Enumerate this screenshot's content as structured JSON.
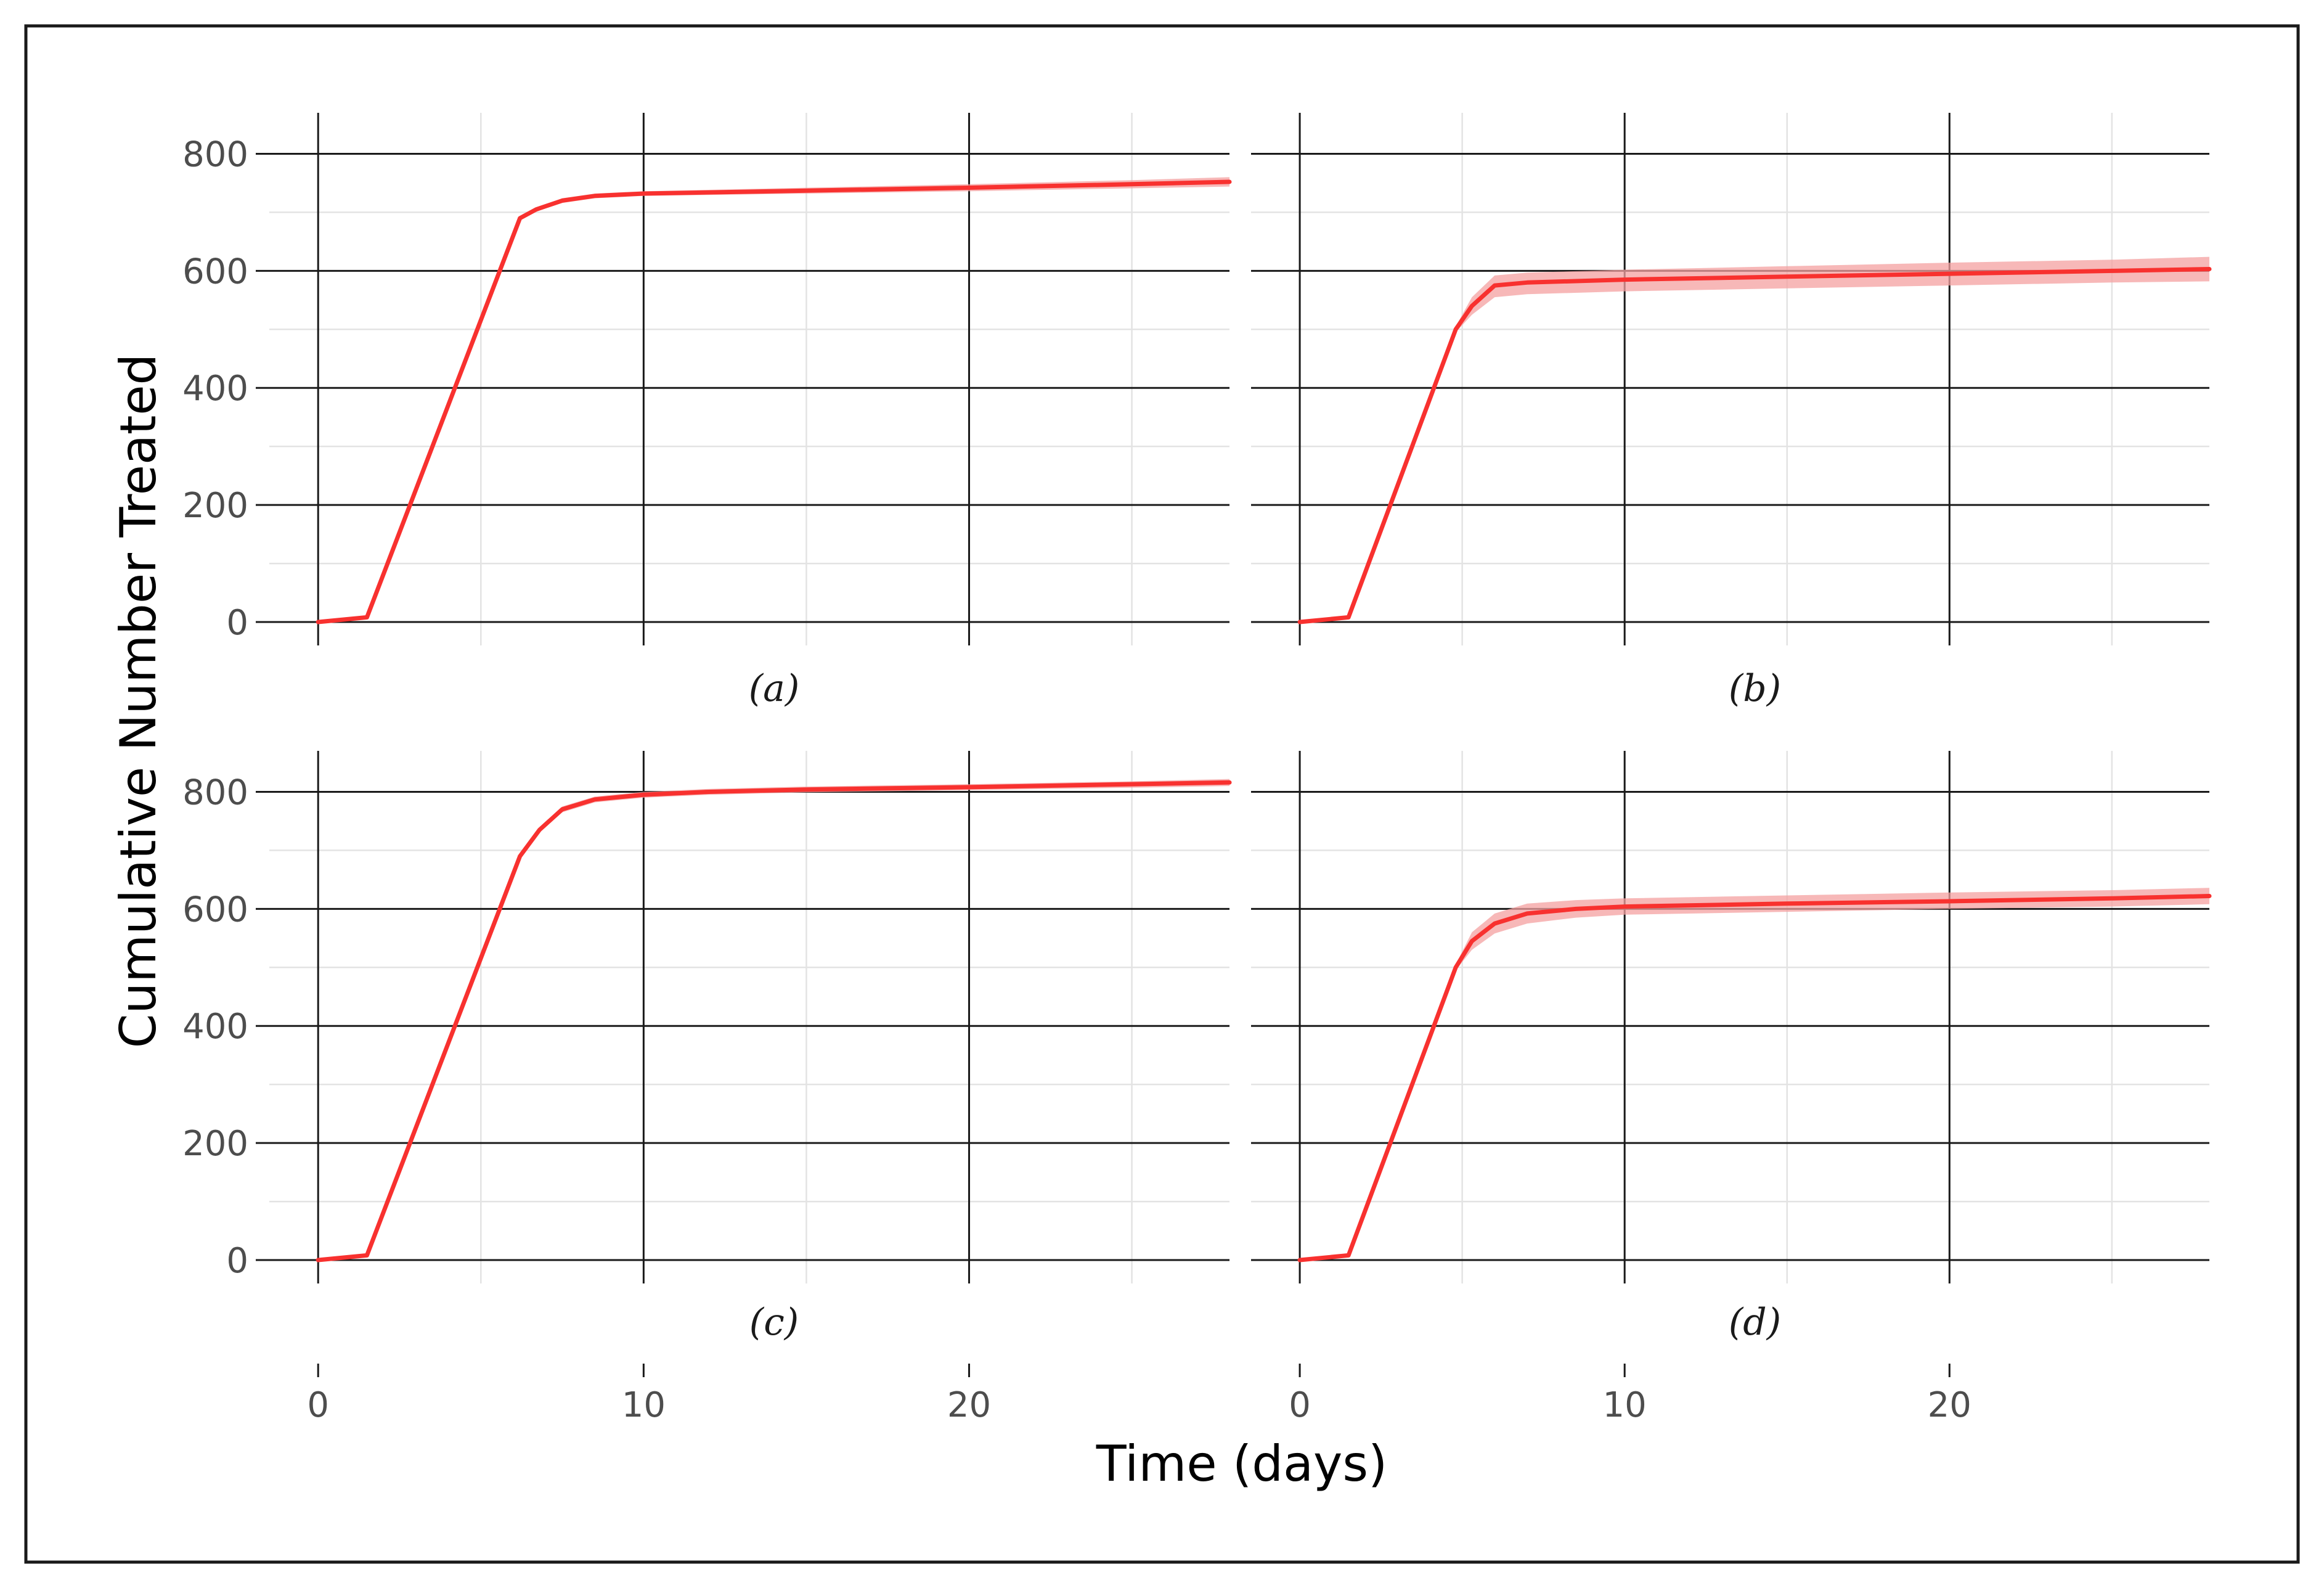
{
  "figure": {
    "ylabel": "Cumulative Number Treated",
    "xlabel": "Time (days)"
  },
  "axes": {
    "x_ticks": [
      0,
      10,
      20
    ],
    "x_minor": [
      5,
      15,
      25
    ],
    "xlim": [
      -1.5,
      28
    ],
    "y_ticks": [
      0,
      200,
      400,
      600,
      800
    ],
    "y_minor": [
      100,
      300,
      500,
      700
    ],
    "ylim": [
      -40,
      870
    ],
    "grid": true
  },
  "colors": {
    "line": "#f8312f",
    "band": "#f4a0a0",
    "major_grid": "#1a1a1a",
    "minor_grid": "#e3e3e3"
  },
  "chart_data": [
    {
      "type": "line",
      "panel": "(a)",
      "x": [
        0,
        1.5,
        6.2,
        6.7,
        7.5,
        8.5,
        10,
        15,
        20,
        25,
        28
      ],
      "y": [
        0,
        8,
        690,
        705,
        720,
        728,
        732,
        737,
        742,
        748,
        752
      ],
      "lower": [
        0,
        8,
        688,
        702,
        716,
        724,
        728,
        732,
        736,
        741,
        744
      ],
      "upper": [
        0,
        8,
        692,
        708,
        724,
        732,
        736,
        742,
        748,
        755,
        760
      ]
    },
    {
      "type": "line",
      "panel": "(b)",
      "x": [
        0,
        1.5,
        4.8,
        5.3,
        6,
        7,
        10,
        15,
        20,
        25,
        28
      ],
      "y": [
        0,
        8,
        500,
        540,
        575,
        580,
        585,
        590,
        595,
        600,
        603
      ],
      "lower": [
        0,
        8,
        495,
        525,
        555,
        560,
        565,
        570,
        575,
        580,
        582
      ],
      "upper": [
        0,
        8,
        505,
        555,
        592,
        597,
        602,
        608,
        614,
        619,
        624
      ]
    },
    {
      "type": "line",
      "panel": "(c)",
      "x": [
        0,
        1.5,
        6.2,
        6.8,
        7.5,
        8.5,
        10,
        12,
        15,
        20,
        25,
        28
      ],
      "y": [
        0,
        8,
        690,
        735,
        770,
        787,
        795,
        800,
        804,
        808,
        813,
        816
      ],
      "lower": [
        0,
        8,
        688,
        731,
        765,
        782,
        790,
        795,
        799,
        803,
        807,
        810
      ],
      "upper": [
        0,
        8,
        692,
        739,
        775,
        792,
        800,
        805,
        809,
        813,
        818,
        822
      ]
    },
    {
      "type": "line",
      "panel": "(d)",
      "x": [
        0,
        1.5,
        4.8,
        5.3,
        6,
        7,
        8.5,
        10,
        15,
        20,
        25,
        28
      ],
      "y": [
        0,
        8,
        500,
        545,
        575,
        592,
        600,
        604,
        609,
        613,
        618,
        622
      ],
      "lower": [
        0,
        8,
        495,
        530,
        558,
        575,
        585,
        590,
        595,
        600,
        604,
        608
      ],
      "upper": [
        0,
        8,
        505,
        560,
        592,
        609,
        615,
        618,
        623,
        628,
        632,
        636
      ]
    }
  ]
}
